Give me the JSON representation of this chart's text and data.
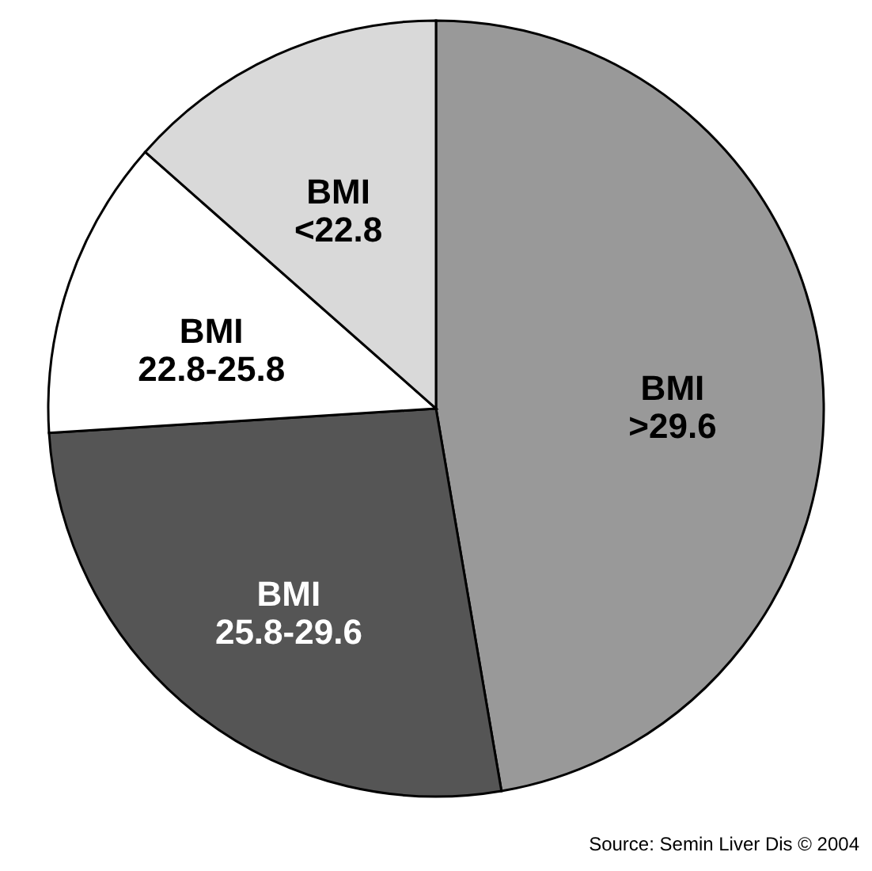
{
  "chart_data": {
    "type": "pie",
    "categories": [
      "BMI >29.6",
      "BMI 25.8-29.6",
      "BMI 22.8-25.8",
      "BMI <22.8"
    ],
    "values": [
      47.3,
      26.7,
      12.5,
      13.5
    ],
    "colors": [
      "#999999",
      "#555555",
      "#ffffff",
      "#d9d9d9"
    ],
    "annotations": [
      "Source: Semin Liver Dis © 2004"
    ]
  }
}
